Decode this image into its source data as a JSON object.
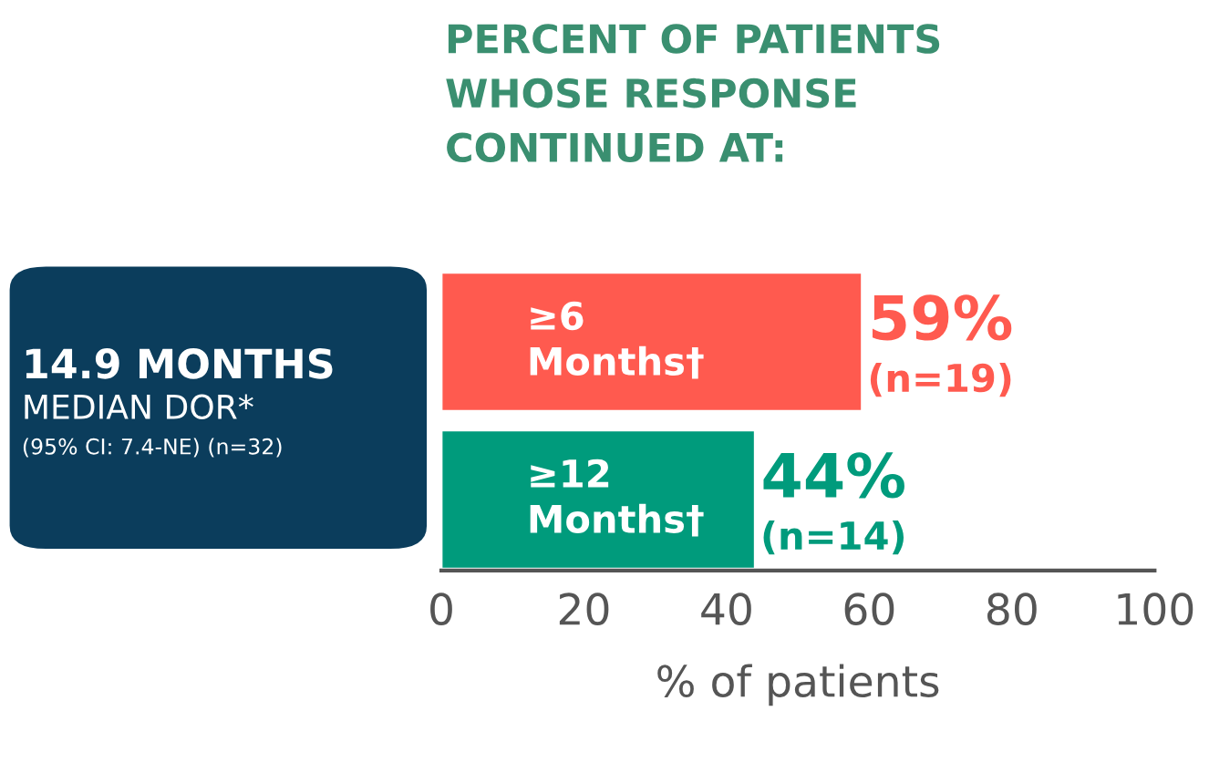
{
  "chart_data": {
    "type": "bar",
    "orientation": "horizontal",
    "title": "PERCENT OF PATIENTS\nWHOSE RESPONSE\nCONTINUED AT:",
    "xlabel": "% of patients",
    "categories": [
      "≥6\nMonths†",
      "≥12\nMonths†"
    ],
    "values": [
      59,
      44
    ],
    "colors": [
      "#ff5a4f",
      "#009b7c"
    ],
    "value_labels": [
      "59%\n(n=19)",
      "44%\n(n=14)"
    ],
    "xlim": [
      0,
      100
    ],
    "xticks": [
      0,
      20,
      40,
      60,
      80,
      100
    ],
    "grid": false,
    "legend": false,
    "annotations": [
      "14.9 MONTHS",
      "MEDIAN DOR*",
      "(95% CI: 7.4-NE) (n=32)"
    ]
  }
}
